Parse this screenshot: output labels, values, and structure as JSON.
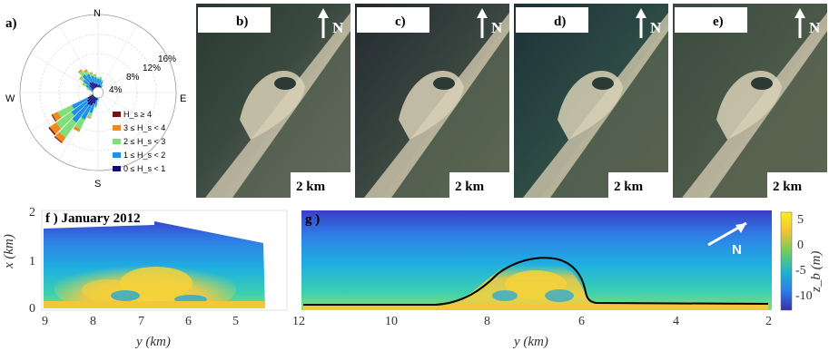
{
  "colors": {
    "hs0": "#0a0a7a",
    "hs1": "#1e90e8",
    "hs2": "#7ee07a",
    "hs3": "#f08a1a",
    "hs4": "#7a1010"
  },
  "chart_data": [
    {
      "type": "polar-bar",
      "panel": "a)",
      "cardinals": [
        "N",
        "E",
        "S",
        "W"
      ],
      "radial_ticks": [
        "4%",
        "8%",
        "12%",
        "16%"
      ],
      "legend": [
        {
          "label": "H_s ≥ 4",
          "color_key": "hs4"
        },
        {
          "label": "3 ≤ H_s < 4",
          "color_key": "hs3"
        },
        {
          "label": "2 ≤ H_s < 3",
          "color_key": "hs2"
        },
        {
          "label": "1 ≤ H_s < 2",
          "color_key": "hs1"
        },
        {
          "label": "0 ≤ H_s < 1",
          "color_key": "hs0"
        }
      ],
      "bins": [
        {
          "dir": 0,
          "v": [
            1.6,
            1.2,
            0.3,
            0,
            0
          ]
        },
        {
          "dir": 10,
          "v": [
            1.6,
            1.2,
            0.5,
            0,
            0
          ]
        },
        {
          "dir": 20,
          "v": [
            1.4,
            1.0,
            0.3,
            0,
            0
          ]
        },
        {
          "dir": 30,
          "v": [
            1.0,
            0.6,
            0.2,
            0,
            0
          ]
        },
        {
          "dir": 40,
          "v": [
            0.6,
            0.3,
            0,
            0,
            0
          ]
        },
        {
          "dir": 340,
          "v": [
            2.0,
            1.6,
            0.6,
            0.2,
            0
          ]
        },
        {
          "dir": 350,
          "v": [
            1.8,
            1.4,
            0.5,
            0.1,
            0
          ]
        },
        {
          "dir": 330,
          "v": [
            2.4,
            1.8,
            0.8,
            0.3,
            0
          ]
        },
        {
          "dir": 320,
          "v": [
            2.6,
            2.0,
            1.0,
            0.3,
            0
          ]
        },
        {
          "dir": 310,
          "v": [
            2.2,
            1.6,
            0.8,
            0.2,
            0
          ]
        },
        {
          "dir": 300,
          "v": [
            1.6,
            1.2,
            0.6,
            0.2,
            0
          ]
        },
        {
          "dir": 290,
          "v": [
            1.2,
            0.8,
            0.4,
            0.1,
            0
          ]
        },
        {
          "dir": 280,
          "v": [
            0.8,
            0.6,
            0.2,
            0,
            0
          ]
        },
        {
          "dir": 270,
          "v": [
            0.6,
            0.4,
            0.1,
            0,
            0
          ]
        },
        {
          "dir": 260,
          "v": [
            0.6,
            0.4,
            0.2,
            0,
            0
          ]
        },
        {
          "dir": 250,
          "v": [
            0.8,
            0.6,
            0.4,
            0.1,
            0
          ]
        },
        {
          "dir": 240,
          "v": [
            2.4,
            3.6,
            3.2,
            1.2,
            0.2
          ]
        },
        {
          "dir": 230,
          "v": [
            2.8,
            4.0,
            3.8,
            1.6,
            0.3
          ]
        },
        {
          "dir": 220,
          "v": [
            3.2,
            4.4,
            3.8,
            1.2,
            0.2
          ]
        },
        {
          "dir": 210,
          "v": [
            3.0,
            3.2,
            2.2,
            0.6,
            0
          ]
        },
        {
          "dir": 200,
          "v": [
            2.4,
            2.0,
            1.0,
            0.2,
            0
          ]
        },
        {
          "dir": 190,
          "v": [
            1.6,
            1.2,
            0.4,
            0,
            0
          ]
        },
        {
          "dir": 180,
          "v": [
            1.0,
            0.6,
            0.2,
            0,
            0
          ]
        },
        {
          "dir": 170,
          "v": [
            0.6,
            0.3,
            0,
            0,
            0
          ]
        },
        {
          "dir": 160,
          "v": [
            0.4,
            0.2,
            0,
            0,
            0
          ]
        },
        {
          "dir": 150,
          "v": [
            0.4,
            0.2,
            0,
            0,
            0
          ]
        },
        {
          "dir": 140,
          "v": [
            0.5,
            0.2,
            0,
            0,
            0
          ]
        },
        {
          "dir": 130,
          "v": [
            0.6,
            0.3,
            0,
            0,
            0
          ]
        },
        {
          "dir": 120,
          "v": [
            0.6,
            0.3,
            0,
            0,
            0
          ]
        },
        {
          "dir": 110,
          "v": [
            0.6,
            0.2,
            0,
            0,
            0
          ]
        },
        {
          "dir": 100,
          "v": [
            0.5,
            0.2,
            0,
            0,
            0
          ]
        },
        {
          "dir": 90,
          "v": [
            0.5,
            0.2,
            0,
            0,
            0
          ]
        },
        {
          "dir": 80,
          "v": [
            0.4,
            0.2,
            0,
            0,
            0
          ]
        },
        {
          "dir": 70,
          "v": [
            0.4,
            0.2,
            0,
            0,
            0
          ]
        },
        {
          "dir": 60,
          "v": [
            0.4,
            0.2,
            0,
            0,
            0
          ]
        },
        {
          "dir": 50,
          "v": [
            0.5,
            0.2,
            0,
            0,
            0
          ]
        }
      ]
    },
    {
      "type": "heatmap",
      "panel": "f)",
      "title": "f ) January 2012",
      "xlabel": "y (km)",
      "ylabel": "x (km)",
      "x_ticks": [
        "9",
        "8",
        "7",
        "6",
        "5"
      ],
      "y_ticks": [
        "0",
        "1",
        "2"
      ],
      "xlim": [
        9.2,
        4.2
      ],
      "ylim": [
        0,
        2
      ]
    },
    {
      "type": "heatmap",
      "panel": "g)",
      "title": "g )",
      "xlabel": "y (km)",
      "x_ticks": [
        "12",
        "10",
        "8",
        "6",
        "4",
        "2"
      ],
      "xlim": [
        12,
        2
      ],
      "colorbar_label": "z_b (m)",
      "colorbar_ticks": [
        "5",
        "0",
        "-5",
        "-10"
      ],
      "colorbar_range": [
        -13,
        7
      ],
      "north_label": "N"
    }
  ],
  "photos": [
    {
      "label": "b)",
      "north": "N",
      "scale": "2 km"
    },
    {
      "label": "c)",
      "north": "N",
      "scale": "2 km"
    },
    {
      "label": "d)",
      "north": "N",
      "scale": "2 km"
    },
    {
      "label": "e)",
      "north": "N",
      "scale": "2 km"
    }
  ]
}
